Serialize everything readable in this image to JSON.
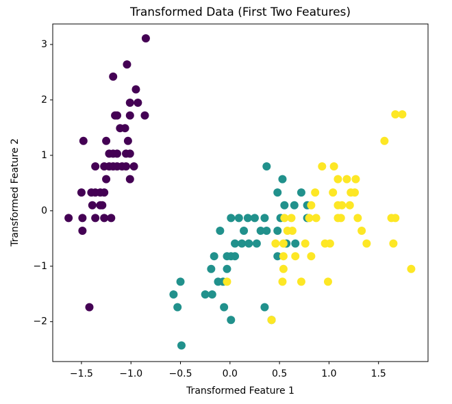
{
  "chart_data": {
    "type": "scatter",
    "title": "Transformed Data (First Two Features)",
    "x_label": "Transformed Feature 1",
    "y_label": "Transformed Feature 2",
    "xlim": [
      -1.79,
      2.0
    ],
    "ylim": [
      -2.72,
      3.37
    ],
    "xticks": [
      {
        "value": -1.5,
        "label": "−1.5"
      },
      {
        "value": -1.0,
        "label": "−1.0"
      },
      {
        "value": -0.5,
        "label": "−0.5"
      },
      {
        "value": 0,
        "label": "0.0"
      },
      {
        "value": 0.5,
        "label": "0.5"
      },
      {
        "value": 1.0,
        "label": "1.0"
      },
      {
        "value": 1.5,
        "label": "1.5"
      }
    ],
    "yticks": [
      {
        "value": -2,
        "label": "−2"
      },
      {
        "value": -1,
        "label": "−1"
      },
      0,
      1,
      2,
      3
    ],
    "grid": false,
    "series": [
      {
        "color": "#440154",
        "x": [
          -0.85,
          -1.04,
          -1.18,
          -0.95,
          -1.01,
          -0.93,
          -1.16,
          -1.14,
          -1.01,
          -0.86,
          -1.11,
          -1.06,
          -1.03,
          -1.48,
          -1.25,
          -1.22,
          -1.18,
          -1.14,
          -1.05,
          -1.01,
          -1.36,
          -1.27,
          -1.22,
          -1.18,
          -1.14,
          -1.09,
          -1.05,
          -0.97,
          -1.25,
          -1.01,
          -1.5,
          -1.4,
          -1.36,
          -1.31,
          -1.27,
          -1.39,
          -1.31,
          -1.29,
          -1.63,
          -1.49,
          -1.36,
          -1.27,
          -1.2,
          -1.49,
          -1.42
        ],
        "y": [
          3.11,
          2.64,
          2.42,
          2.19,
          1.95,
          1.95,
          1.72,
          1.72,
          1.72,
          1.72,
          1.49,
          1.49,
          1.26,
          1.26,
          1.26,
          1.03,
          1.03,
          1.03,
          1.03,
          1.03,
          0.8,
          0.8,
          0.8,
          0.8,
          0.8,
          0.8,
          0.8,
          0.8,
          0.57,
          0.57,
          0.33,
          0.33,
          0.33,
          0.33,
          0.33,
          0.1,
          0.1,
          0.1,
          -0.13,
          -0.13,
          -0.13,
          -0.13,
          -0.13,
          -0.36,
          -1.74
        ]
      },
      {
        "color": "#21918c",
        "x": [
          0.37,
          0.53,
          0.48,
          0.72,
          0.55,
          0.65,
          0.78,
          0.01,
          0.09,
          0.18,
          0.25,
          0.35,
          0.51,
          0.78,
          -0.1,
          0.14,
          0.31,
          0.37,
          0.48,
          0.05,
          0.12,
          0.19,
          0.27,
          0.57,
          0.66,
          -0.16,
          -0.03,
          0.01,
          0.05,
          0.48,
          -0.19,
          -0.03,
          -0.5,
          -0.12,
          -0.07,
          -0.57,
          -0.25,
          -0.18,
          -0.53,
          -0.06,
          0.35,
          0.01,
          0.42,
          -0.49
        ],
        "y": [
          0.8,
          0.57,
          0.33,
          0.33,
          0.1,
          0.1,
          0.1,
          -0.13,
          -0.13,
          -0.13,
          -0.13,
          -0.13,
          -0.13,
          -0.13,
          -0.36,
          -0.36,
          -0.36,
          -0.36,
          -0.36,
          -0.59,
          -0.59,
          -0.59,
          -0.59,
          -0.59,
          -0.59,
          -0.82,
          -0.82,
          -0.82,
          -0.82,
          -0.82,
          -1.05,
          -1.05,
          -1.28,
          -1.28,
          -1.28,
          -1.51,
          -1.51,
          -1.51,
          -1.74,
          -1.74,
          -1.74,
          -1.97,
          -1.97,
          -2.43
        ]
      },
      {
        "color": "#fde725",
        "x": [
          1.67,
          1.74,
          1.56,
          0.93,
          1.05,
          1.09,
          1.18,
          1.27,
          0.86,
          1.04,
          1.22,
          1.26,
          0.82,
          1.09,
          1.13,
          1.21,
          0.55,
          0.62,
          0.8,
          0.87,
          1.09,
          1.12,
          1.29,
          1.63,
          1.67,
          0.58,
          0.63,
          1.33,
          0.46,
          0.54,
          0.76,
          0.96,
          1.01,
          1.38,
          1.65,
          0.54,
          0.66,
          0.82,
          0.54,
          1.83,
          -0.03,
          0.53,
          0.72,
          0.99,
          0.42
        ],
        "y": [
          1.74,
          1.74,
          1.26,
          0.8,
          0.8,
          0.57,
          0.57,
          0.57,
          0.33,
          0.33,
          0.33,
          0.33,
          0.1,
          0.1,
          0.1,
          0.1,
          -0.13,
          -0.13,
          -0.13,
          -0.13,
          -0.13,
          -0.13,
          -0.13,
          -0.13,
          -0.13,
          -0.36,
          -0.36,
          -0.36,
          -0.59,
          -0.59,
          -0.59,
          -0.59,
          -0.59,
          -0.59,
          -0.59,
          -0.82,
          -0.82,
          -0.82,
          -1.05,
          -1.05,
          -1.28,
          -1.28,
          -1.28,
          -1.28,
          -1.97
        ]
      }
    ]
  }
}
